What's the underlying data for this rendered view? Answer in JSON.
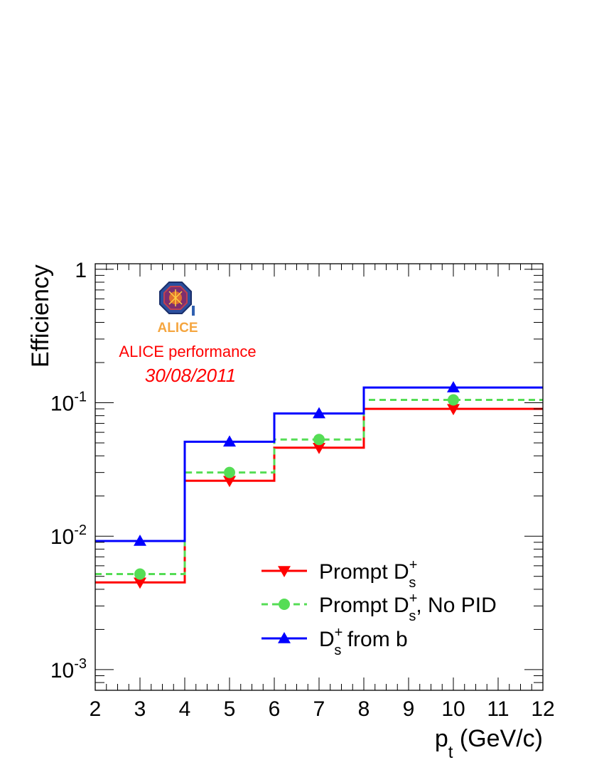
{
  "chart_data": {
    "type": "line",
    "xlabel": "p",
    "xlabel_sub": "t",
    "xlabel_unit": "(GeV/c)",
    "ylabel": "Efficiency",
    "xlim": [
      2,
      12
    ],
    "ylim": [
      0.0007,
      1.1
    ],
    "y_scale": "log",
    "grid": false,
    "x_ticks": [
      2,
      3,
      4,
      5,
      6,
      7,
      8,
      9,
      10,
      11,
      12
    ],
    "y_ticks": [
      {
        "value": 1,
        "base": "1",
        "exp": ""
      },
      {
        "value": 0.1,
        "base": "10",
        "exp": "-1"
      },
      {
        "value": 0.01,
        "base": "10",
        "exp": "-2"
      },
      {
        "value": 0.001,
        "base": "10",
        "exp": "-3"
      }
    ],
    "bin_edges": [
      2,
      4,
      6,
      8,
      12
    ],
    "bin_centers": [
      3,
      5,
      7,
      10
    ],
    "series": [
      {
        "name": "Prompt D",
        "name_sup": "+",
        "name_sub": "s",
        "name_suffix": "",
        "values": [
          0.0045,
          0.026,
          0.046,
          0.09
        ],
        "color": "#ff0000",
        "marker": "triangle-down",
        "line": "solid"
      },
      {
        "name": "Prompt D",
        "name_sup": "+",
        "name_sub": "s",
        "name_suffix": ", No PID",
        "values": [
          0.0052,
          0.03,
          0.053,
          0.105
        ],
        "color": "#55dd55",
        "marker": "circle",
        "line": "dashed"
      },
      {
        "name": "D",
        "name_sup": "+",
        "name_sub": "s",
        "name_suffix": " from b",
        "values": [
          0.0092,
          0.051,
          0.083,
          0.13
        ],
        "color": "#0000ff",
        "marker": "triangle-up",
        "line": "solid"
      }
    ],
    "legend_position": "lower-right",
    "annotations": {
      "performance": "ALICE performance",
      "date": "30/08/2011",
      "logo_text": "ALICE"
    },
    "annotation_color": "#ff0000"
  }
}
